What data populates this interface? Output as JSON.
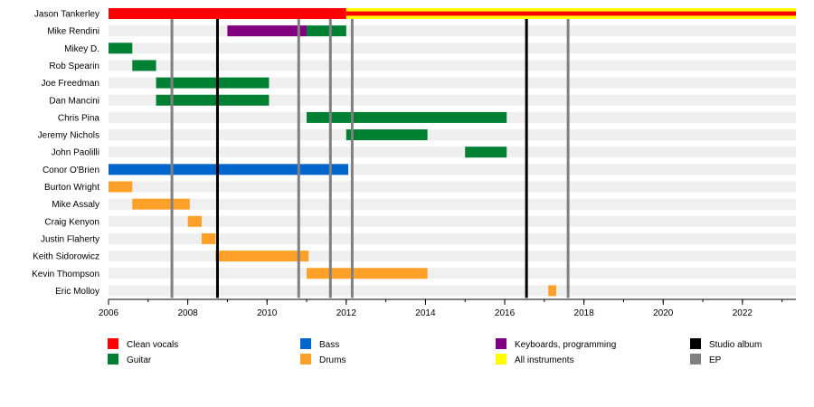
{
  "chart_data": {
    "type": "timeline",
    "xlim": [
      2006,
      2023.35
    ],
    "x_ticks": [
      "2006",
      "2008",
      "2010",
      "2012",
      "2014",
      "2016",
      "2018",
      "2020",
      "2022"
    ],
    "members": [
      "Jason Tankerley",
      "Mike Rendini",
      "Mikey D.",
      "Rob Spearin",
      "Joe Freedman",
      "Dan Mancini",
      "Chris Pina",
      "Jeremy Nichols",
      "John Paolilli",
      "Conor O'Brien",
      "Burton Wright",
      "Mike Assaly",
      "Craig Kenyon",
      "Justin Flaherty",
      "Keith Sidorowicz",
      "Kevin Thompson",
      "Eric Molloy"
    ],
    "roles": {
      "clean_vocals": {
        "label": "Clean vocals",
        "color": "#ff0000"
      },
      "guitar": {
        "label": "Guitar",
        "color": "#008033"
      },
      "bass": {
        "label": "Bass",
        "color": "#0066cc"
      },
      "drums": {
        "label": "Drums",
        "color": "#ffa128"
      },
      "keyboards": {
        "label": "Keyboards, programming",
        "color": "#800080"
      },
      "all_instruments": {
        "label": "All instruments",
        "color": "#ffff00"
      },
      "studio_album": {
        "label": "Studio album",
        "color": "#000000"
      },
      "ep": {
        "label": "EP",
        "color": "#808080"
      }
    },
    "bars": [
      {
        "member": "Jason Tankerley",
        "role": "clean_vocals",
        "start": 2006.0,
        "end": 2012.0
      },
      {
        "member": "Jason Tankerley",
        "role": "all_instruments",
        "start": 2012.0,
        "end": 2023.35,
        "inner_role": "clean_vocals"
      },
      {
        "member": "Mike Rendini",
        "role": "keyboards",
        "start": 2009.0,
        "end": 2011.0
      },
      {
        "member": "Mike Rendini",
        "role": "guitar",
        "start": 2011.0,
        "end": 2012.0
      },
      {
        "member": "Mikey D.",
        "role": "guitar",
        "start": 2006.0,
        "end": 2006.6
      },
      {
        "member": "Rob Spearin",
        "role": "guitar",
        "start": 2006.6,
        "end": 2007.2
      },
      {
        "member": "Joe Freedman",
        "role": "guitar",
        "start": 2007.2,
        "end": 2010.05
      },
      {
        "member": "Dan Mancini",
        "role": "guitar",
        "start": 2007.2,
        "end": 2010.05
      },
      {
        "member": "Chris Pina",
        "role": "guitar",
        "start": 2011.0,
        "end": 2016.05
      },
      {
        "member": "Jeremy Nichols",
        "role": "guitar",
        "start": 2012.0,
        "end": 2014.05
      },
      {
        "member": "John Paolilli",
        "role": "guitar",
        "start": 2015.0,
        "end": 2016.05
      },
      {
        "member": "Conor O'Brien",
        "role": "bass",
        "start": 2006.0,
        "end": 2012.05
      },
      {
        "member": "Burton Wright",
        "role": "drums",
        "start": 2006.0,
        "end": 2006.6
      },
      {
        "member": "Mike Assaly",
        "role": "drums",
        "start": 2006.6,
        "end": 2008.05
      },
      {
        "member": "Craig Kenyon",
        "role": "drums",
        "start": 2008.0,
        "end": 2008.35
      },
      {
        "member": "Justin Flaherty",
        "role": "drums",
        "start": 2008.35,
        "end": 2008.7
      },
      {
        "member": "Keith Sidorowicz",
        "role": "drums",
        "start": 2008.7,
        "end": 2011.05
      },
      {
        "member": "Kevin Thompson",
        "role": "drums",
        "start": 2011.0,
        "end": 2014.05
      },
      {
        "member": "Eric Molloy",
        "role": "drums",
        "start": 2017.1,
        "end": 2017.3
      }
    ],
    "releases": [
      {
        "type": "ep",
        "year": 2007.6
      },
      {
        "type": "studio_album",
        "year": 2008.75
      },
      {
        "type": "ep",
        "year": 2010.8
      },
      {
        "type": "ep",
        "year": 2011.6
      },
      {
        "type": "ep",
        "year": 2012.15
      },
      {
        "type": "studio_album",
        "year": 2016.55
      },
      {
        "type": "ep",
        "year": 2017.6
      }
    ],
    "legend": {
      "placement": "bottom",
      "columns": [
        [
          "clean_vocals",
          "guitar"
        ],
        [
          "bass",
          "drums"
        ],
        [
          "keyboards",
          "all_instruments"
        ],
        [
          "studio_album",
          "ep"
        ]
      ]
    },
    "grid": "row-stripes"
  }
}
